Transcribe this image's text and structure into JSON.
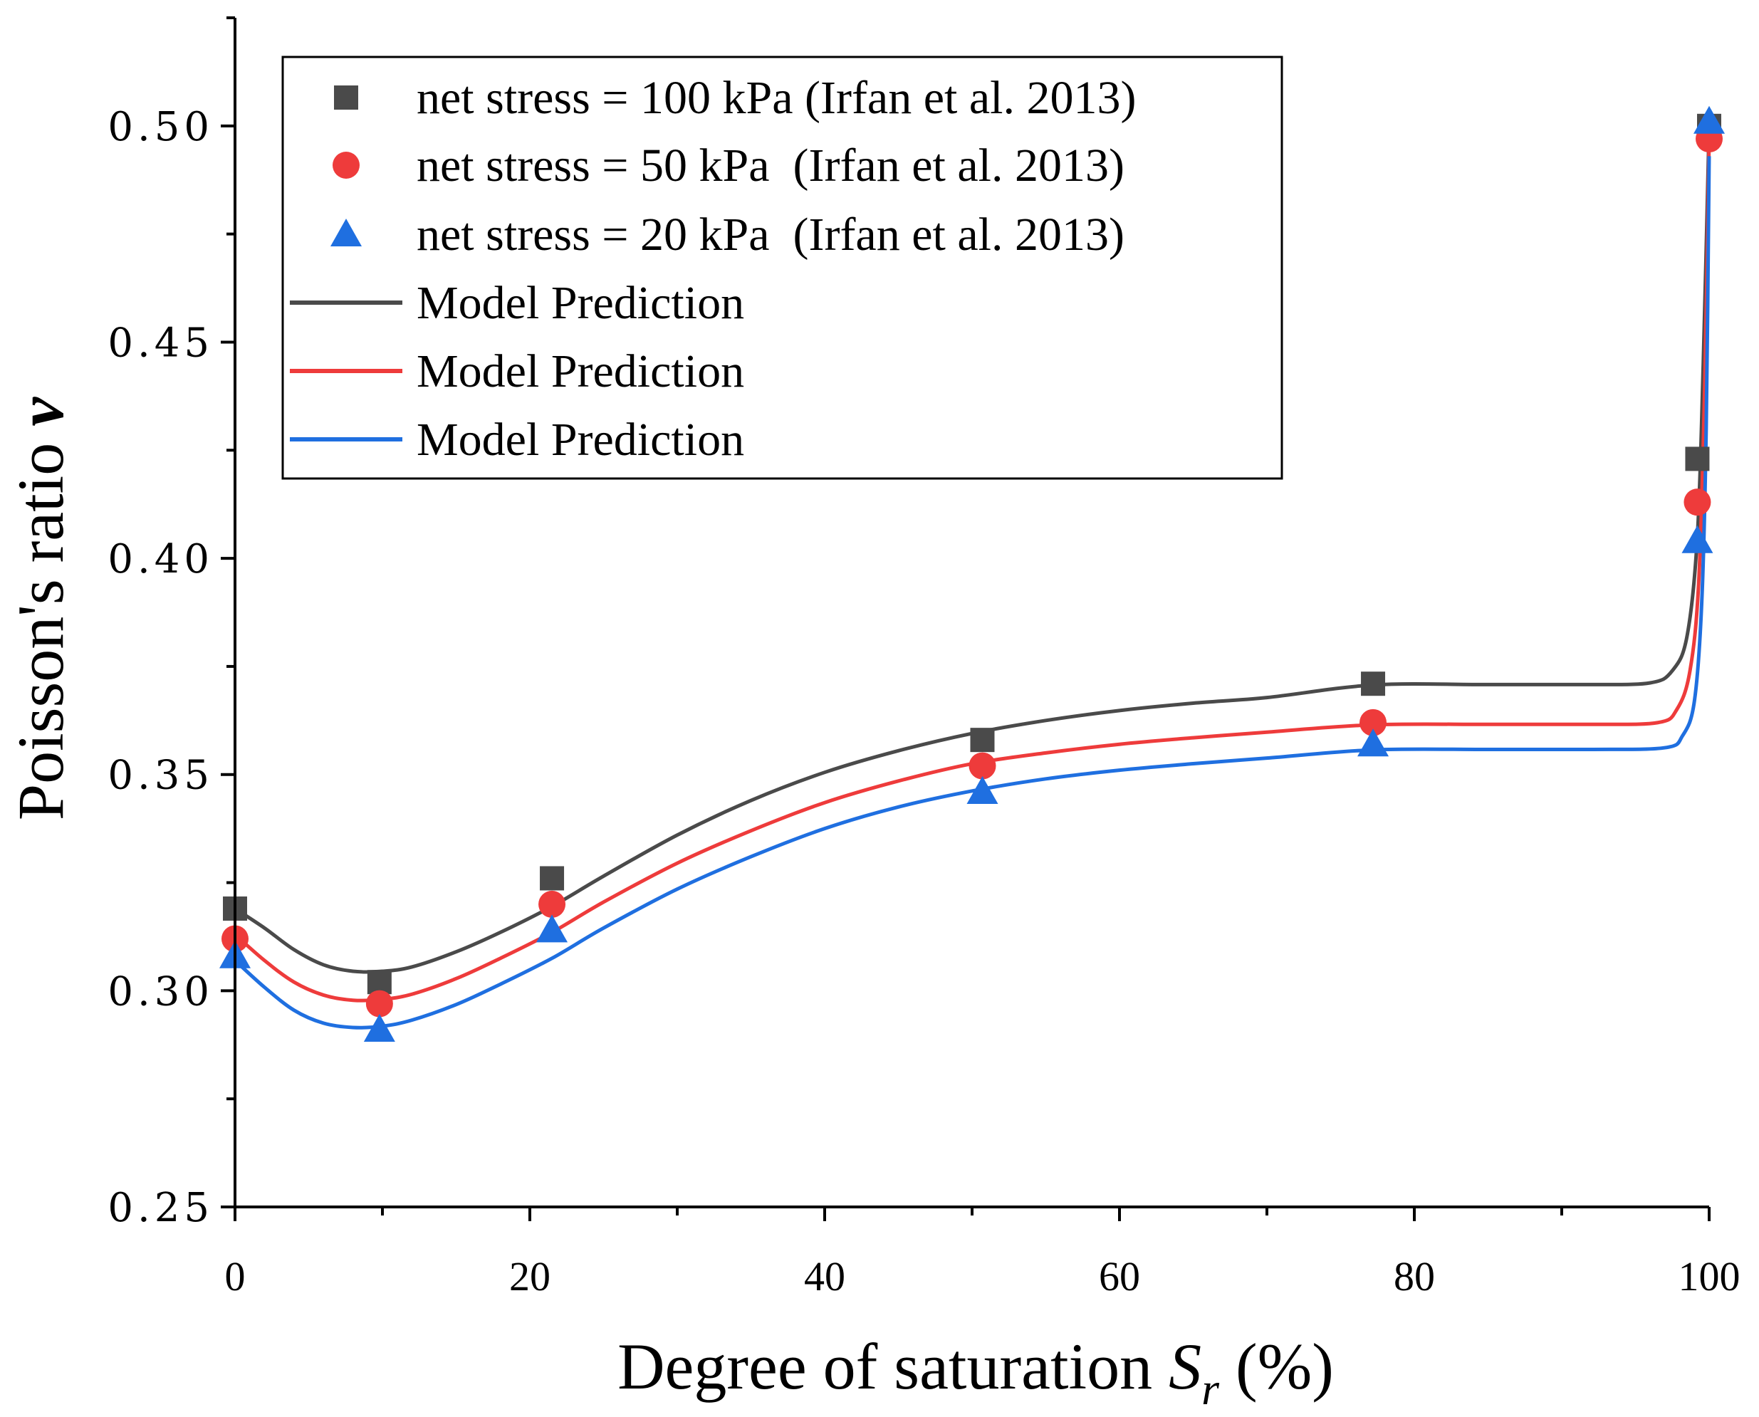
{
  "chart_data": {
    "type": "scatter",
    "title": "",
    "xlabel": "Degree of saturation",
    "xlabel_symbol": "S",
    "xlabel_subscript": "r",
    "xlabel_unit": "(%)",
    "ylabel": "Poisson's ratio",
    "ylabel_symbol": "v",
    "xlim": [
      0,
      100
    ],
    "ylim": [
      0.25,
      0.525
    ],
    "x_ticks": [
      0,
      20,
      40,
      60,
      80,
      100
    ],
    "x_tick_labels": [
      "0",
      "20",
      "40",
      "60",
      "80",
      "100"
    ],
    "y_ticks": [
      0.25,
      0.3,
      0.35,
      0.4,
      0.45,
      0.5
    ],
    "y_tick_labels": [
      "0.25",
      "0.30",
      "0.35",
      "0.40",
      "0.45",
      "0.50"
    ],
    "legend_position": "top-left",
    "series": [
      {
        "name": "net stress = 100 kPa (Irfan et al. 2013)",
        "kind": "markers",
        "marker": "square",
        "color": "#4a4a4a",
        "x": [
          0,
          9.8,
          21.5,
          50.7,
          77.2,
          99.2,
          100
        ],
        "y": [
          0.319,
          0.302,
          0.326,
          0.358,
          0.371,
          0.423,
          0.5
        ]
      },
      {
        "name": "net stress = 50 kPa  (Irfan et al. 2013)",
        "kind": "markers",
        "marker": "circle",
        "color": "#ee3b3b",
        "x": [
          0,
          9.8,
          21.5,
          50.7,
          77.2,
          99.2,
          100
        ],
        "y": [
          0.312,
          0.297,
          0.32,
          0.352,
          0.362,
          0.413,
          0.497
        ]
      },
      {
        "name": "net stress = 20 kPa  (Irfan et al. 2013)",
        "kind": "markers",
        "marker": "triangle",
        "color": "#1f6fe0",
        "x": [
          0,
          9.8,
          21.5,
          50.7,
          77.2,
          99.2,
          100
        ],
        "y": [
          0.308,
          0.291,
          0.314,
          0.346,
          0.357,
          0.404,
          0.501
        ]
      },
      {
        "name": "Model Prediction",
        "kind": "line",
        "color": "#4a4a4a",
        "x": [
          0,
          2,
          4,
          6,
          8,
          10,
          12,
          15,
          18,
          21.5,
          25,
          30,
          35,
          40,
          45,
          50,
          55,
          60,
          65,
          70,
          77.2,
          85,
          92,
          96,
          97.5,
          98.5,
          99.2,
          99.6,
          100
        ],
        "y": [
          0.319,
          0.3145,
          0.3095,
          0.306,
          0.3045,
          0.3045,
          0.3055,
          0.309,
          0.3135,
          0.3195,
          0.3265,
          0.336,
          0.344,
          0.3505,
          0.3555,
          0.3595,
          0.3625,
          0.3648,
          0.3665,
          0.3678,
          0.3707,
          0.3708,
          0.3708,
          0.3712,
          0.374,
          0.382,
          0.405,
          0.445,
          0.5
        ]
      },
      {
        "name": "Model Prediction",
        "kind": "line",
        "color": "#ee3b3b",
        "x": [
          0,
          2,
          4,
          6,
          8,
          10,
          12,
          15,
          18,
          21.5,
          25,
          30,
          35,
          40,
          45,
          50,
          55,
          60,
          65,
          70,
          77.2,
          85,
          92,
          96.5,
          97.8,
          98.7,
          99.3,
          99.7,
          100
        ],
        "y": [
          0.313,
          0.307,
          0.302,
          0.299,
          0.2978,
          0.298,
          0.2992,
          0.3028,
          0.3075,
          0.3135,
          0.3205,
          0.3295,
          0.337,
          0.3435,
          0.3485,
          0.3525,
          0.355,
          0.357,
          0.3585,
          0.3598,
          0.3615,
          0.3616,
          0.3616,
          0.362,
          0.365,
          0.374,
          0.395,
          0.44,
          0.497
        ]
      },
      {
        "name": "Model Prediction",
        "kind": "line",
        "color": "#1f6fe0",
        "x": [
          0,
          2,
          4,
          6,
          8,
          10,
          12,
          15,
          18,
          21.5,
          25,
          30,
          35,
          40,
          45,
          50,
          55,
          60,
          65,
          70,
          77.2,
          85,
          92,
          97,
          98.2,
          99.0,
          99.5,
          99.8,
          100
        ],
        "y": [
          0.307,
          0.3008,
          0.2955,
          0.2925,
          0.2915,
          0.2918,
          0.2932,
          0.2968,
          0.3015,
          0.3075,
          0.3145,
          0.3235,
          0.331,
          0.3375,
          0.3425,
          0.3462,
          0.349,
          0.351,
          0.3525,
          0.3538,
          0.3557,
          0.3558,
          0.3558,
          0.3562,
          0.359,
          0.367,
          0.39,
          0.43,
          0.493
        ]
      }
    ]
  }
}
